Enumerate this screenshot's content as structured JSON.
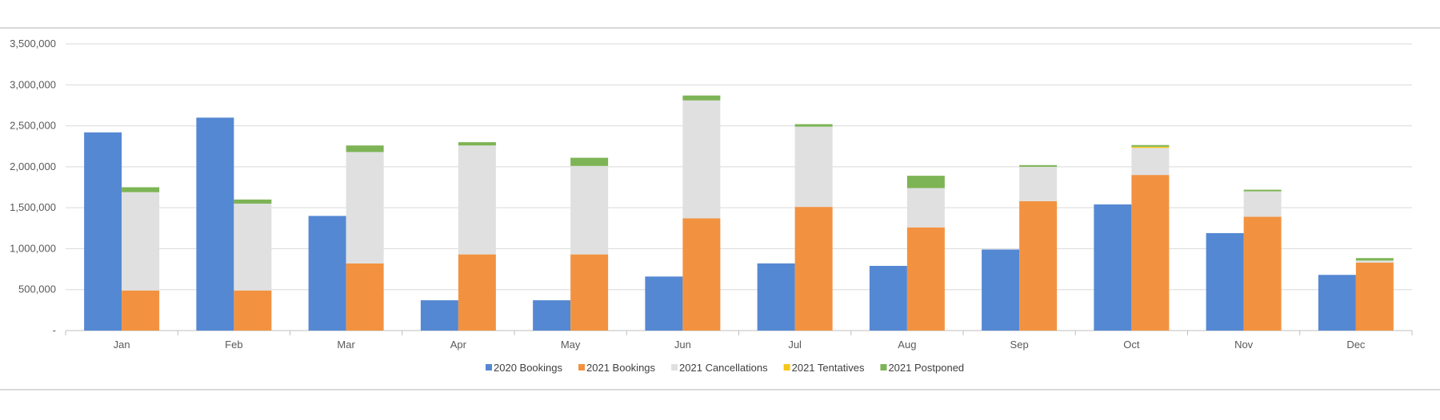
{
  "chart_data": {
    "type": "bar",
    "title": "",
    "xlabel": "",
    "ylabel": "",
    "ylim": [
      0,
      3500000
    ],
    "yticks": [
      0,
      500000,
      1000000,
      1500000,
      2000000,
      2500000,
      3000000,
      3500000
    ],
    "ytick_labels": [
      "-",
      "500,000",
      "1,000,000",
      "1,500,000",
      "2,000,000",
      "2,500,000",
      "3,000,000",
      "3,500,000"
    ],
    "grid": true,
    "legend_position": "bottom",
    "categories": [
      "Jan",
      "Feb",
      "Mar",
      "Apr",
      "May",
      "Jun",
      "Jul",
      "Aug",
      "Sep",
      "Oct",
      "Nov",
      "Dec"
    ],
    "series": [
      {
        "name": "2020 Bookings",
        "color": "#5588d3",
        "stack": "2020",
        "values": [
          2420000,
          2600000,
          1400000,
          370000,
          370000,
          660000,
          820000,
          790000,
          990000,
          1540000,
          1190000,
          680000
        ]
      },
      {
        "name": "2021 Bookings",
        "color": "#f29240",
        "stack": "2021",
        "values": [
          490000,
          490000,
          820000,
          930000,
          930000,
          1370000,
          1510000,
          1260000,
          1580000,
          1900000,
          1390000,
          830000
        ]
      },
      {
        "name": "2021 Cancellations",
        "color": "#e0e0e0",
        "stack": "2021",
        "values": [
          1200000,
          1060000,
          1360000,
          1330000,
          1080000,
          1440000,
          980000,
          480000,
          420000,
          330000,
          310000,
          25000
        ]
      },
      {
        "name": "2021 Tentatives",
        "color": "#f7c61b",
        "stack": "2021",
        "values": [
          0,
          0,
          0,
          0,
          0,
          0,
          0,
          0,
          0,
          15000,
          0,
          0
        ]
      },
      {
        "name": "2021 Postponed",
        "color": "#7db455",
        "stack": "2021",
        "values": [
          60000,
          50000,
          80000,
          40000,
          100000,
          60000,
          30000,
          150000,
          20000,
          20000,
          20000,
          30000
        ]
      }
    ]
  }
}
